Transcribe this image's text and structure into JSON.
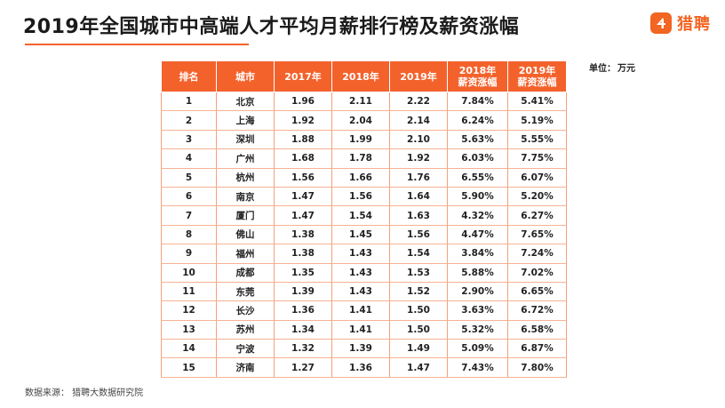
{
  "title": "2019年全国城市中高端人才平均月薪排行榜及薪资涨幅",
  "logo": {
    "icon": "liepin-logo-icon",
    "text": "猎聘",
    "color": "#f26522"
  },
  "unit": {
    "label": "单位：",
    "value": "万元"
  },
  "accent_color": "#f4622c",
  "table": {
    "headers": [
      "排名",
      "城市",
      "2017年",
      "2018年",
      "2019年",
      "2018年薪资涨幅",
      "2019年薪资涨幅"
    ],
    "header_lines": [
      [
        "排名"
      ],
      [
        "城市"
      ],
      [
        "2017年"
      ],
      [
        "2018年"
      ],
      [
        "2019年"
      ],
      [
        "2018年",
        "薪资涨幅"
      ],
      [
        "2019年",
        "薪资涨幅"
      ]
    ],
    "rows": [
      [
        "1",
        "北京",
        "1.96",
        "2.11",
        "2.22",
        "7.84%",
        "5.41%"
      ],
      [
        "2",
        "上海",
        "1.92",
        "2.04",
        "2.14",
        "6.24%",
        "5.19%"
      ],
      [
        "3",
        "深圳",
        "1.88",
        "1.99",
        "2.10",
        "5.63%",
        "5.55%"
      ],
      [
        "4",
        "广州",
        "1.68",
        "1.78",
        "1.92",
        "6.03%",
        "7.75%"
      ],
      [
        "5",
        "杭州",
        "1.56",
        "1.66",
        "1.76",
        "6.55%",
        "6.07%"
      ],
      [
        "6",
        "南京",
        "1.47",
        "1.56",
        "1.64",
        "5.90%",
        "5.20%"
      ],
      [
        "7",
        "厦门",
        "1.47",
        "1.54",
        "1.63",
        "4.32%",
        "6.27%"
      ],
      [
        "8",
        "佛山",
        "1.38",
        "1.45",
        "1.56",
        "4.47%",
        "7.65%"
      ],
      [
        "9",
        "福州",
        "1.38",
        "1.43",
        "1.54",
        "3.84%",
        "7.24%"
      ],
      [
        "10",
        "成都",
        "1.35",
        "1.43",
        "1.53",
        "5.88%",
        "7.02%"
      ],
      [
        "11",
        "东莞",
        "1.39",
        "1.43",
        "1.52",
        "2.90%",
        "6.65%"
      ],
      [
        "12",
        "长沙",
        "1.36",
        "1.41",
        "1.50",
        "3.63%",
        "6.72%"
      ],
      [
        "13",
        "苏州",
        "1.34",
        "1.41",
        "1.50",
        "5.32%",
        "6.58%"
      ],
      [
        "14",
        "宁波",
        "1.32",
        "1.39",
        "1.49",
        "5.09%",
        "6.87%"
      ],
      [
        "15",
        "济南",
        "1.27",
        "1.36",
        "1.47",
        "7.43%",
        "7.80%"
      ]
    ]
  },
  "footer": {
    "source": "数据来源：  猎聘大数据研究院"
  }
}
